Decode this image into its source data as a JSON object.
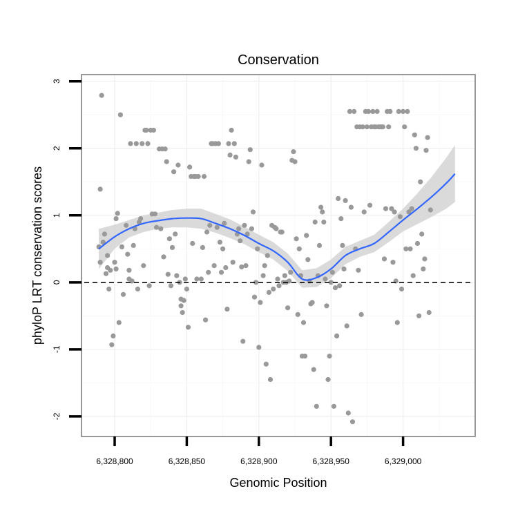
{
  "chart_data": {
    "type": "scatter",
    "title": "Conservation",
    "xlabel": "Genomic Position",
    "ylabel": "phyloP LRT conservation scores",
    "xlim": [
      6328777,
      6329050
    ],
    "ylim": [
      -2.3,
      3.1
    ],
    "x_ticks": [
      6328800,
      6328850,
      6328900,
      6328950,
      6329000
    ],
    "x_tick_labels": [
      "6,328,800",
      "6,328,850",
      "6,328,900",
      "6,328,950",
      "6,329,000"
    ],
    "y_ticks": [
      -2,
      -1,
      0,
      1,
      2,
      3
    ],
    "y_tick_labels": [
      "-2",
      "-1",
      "0",
      "1",
      "2",
      "3"
    ],
    "reference_line": {
      "y": 0,
      "style": "dashed",
      "color": "#000000"
    },
    "grid": true,
    "legend": "none",
    "colors": {
      "points": "#999999",
      "smooth_line": "#3366ff",
      "confidence_band": "#d3d3d3",
      "panel_border": "#7f7f7f"
    },
    "points": [
      [
        6328789,
        0.53
      ],
      [
        6328790,
        1.39
      ],
      [
        6328790,
        0.3
      ],
      [
        6328791,
        2.79
      ],
      [
        6328792,
        0.6
      ],
      [
        6328793,
        0.72
      ],
      [
        6328794,
        0.13
      ],
      [
        6328795,
        0.4
      ],
      [
        6328795,
        0.22
      ],
      [
        6328796,
        -0.1
      ],
      [
        6328797,
        0.18
      ],
      [
        6328798,
        -0.93
      ],
      [
        6328799,
        -0.8
      ],
      [
        6328800,
        0.3
      ],
      [
        6328801,
        0.95
      ],
      [
        6328801,
        0.2
      ],
      [
        6328802,
        1.03
      ],
      [
        6328803,
        -0.6
      ],
      [
        6328804,
        2.5
      ],
      [
        6328805,
        0.53
      ],
      [
        6328806,
        -0.18
      ],
      [
        6328808,
        0.85
      ],
      [
        6328809,
        0.42
      ],
      [
        6328810,
        0.18
      ],
      [
        6328810,
        0.05
      ],
      [
        6328811,
        2.07
      ],
      [
        6328812,
        0.02
      ],
      [
        6328813,
        0.55
      ],
      [
        6328814,
        0.8
      ],
      [
        6328815,
        2.07
      ],
      [
        6328816,
        -0.1
      ],
      [
        6328817,
        0.9
      ],
      [
        6328818,
        0.95
      ],
      [
        6328819,
        2.07
      ],
      [
        6328820,
        0.25
      ],
      [
        6328821,
        2.27
      ],
      [
        6328822,
        2.27
      ],
      [
        6328823,
        2.07
      ],
      [
        6328824,
        -0.05
      ],
      [
        6328825,
        2.27
      ],
      [
        6328826,
        1.02
      ],
      [
        6328827,
        2.27
      ],
      [
        6328828,
        1.02
      ],
      [
        6328829,
        0.82
      ],
      [
        6328831,
        1.99
      ],
      [
        6328832,
        0.8
      ],
      [
        6328833,
        1.99
      ],
      [
        6328834,
        0.38
      ],
      [
        6328835,
        1.99
      ],
      [
        6328836,
        1.8
      ],
      [
        6328837,
        0.12
      ],
      [
        6328838,
        0.65
      ],
      [
        6328839,
        -0.05
      ],
      [
        6328840,
        0.52
      ],
      [
        6328841,
        1.65
      ],
      [
        6328842,
        0.72
      ],
      [
        6328843,
        0.1
      ],
      [
        6328844,
        1.75
      ],
      [
        6328845,
        0.0
      ],
      [
        6328846,
        -0.25
      ],
      [
        6328846,
        -0.35
      ],
      [
        6328847,
        -0.45
      ],
      [
        6328848,
        -0.27
      ],
      [
        6328849,
        0.05
      ],
      [
        6328850,
        -0.1
      ],
      [
        6328851,
        -0.67
      ],
      [
        6328852,
        1.72
      ],
      [
        6328853,
        1.58
      ],
      [
        6328854,
        0.58
      ],
      [
        6328855,
        1.58
      ],
      [
        6328856,
        1.58
      ],
      [
        6328857,
        0.05
      ],
      [
        6328858,
        1.58
      ],
      [
        6328860,
        0.05
      ],
      [
        6328861,
        0.52
      ],
      [
        6328862,
        1.58
      ],
      [
        6328863,
        -0.56
      ],
      [
        6328864,
        0.75
      ],
      [
        6328865,
        0.15
      ],
      [
        6328866,
        0.85
      ],
      [
        6328867,
        2.07
      ],
      [
        6328868,
        2.07
      ],
      [
        6328869,
        0.25
      ],
      [
        6328870,
        2.07
      ],
      [
        6328871,
        0.82
      ],
      [
        6328872,
        2.07
      ],
      [
        6328873,
        0.6
      ],
      [
        6328874,
        0.15
      ],
      [
        6328875,
        0.5
      ],
      [
        6328876,
        0.88
      ],
      [
        6328877,
        0.22
      ],
      [
        6328878,
        -0.4
      ],
      [
        6328879,
        2.07
      ],
      [
        6328880,
        1.9
      ],
      [
        6328881,
        2.27
      ],
      [
        6328882,
        0.3
      ],
      [
        6328883,
        2.07
      ],
      [
        6328884,
        1.87
      ],
      [
        6328885,
        0.72
      ],
      [
        6328886,
        0.8
      ],
      [
        6328887,
        0.62
      ],
      [
        6328888,
        0.23
      ],
      [
        6328889,
        -0.88
      ],
      [
        6328890,
        0.85
      ],
      [
        6328891,
        0.25
      ],
      [
        6328892,
        0.72
      ],
      [
        6328893,
        1.8
      ],
      [
        6328894,
        1.98
      ],
      [
        6328895,
        0.8
      ],
      [
        6328896,
        1.05
      ],
      [
        6328897,
        -0.22
      ],
      [
        6328898,
        0.0
      ],
      [
        6328899,
        0.5
      ],
      [
        6328900,
        -0.97
      ],
      [
        6328901,
        -0.3
      ],
      [
        6328902,
        1.75
      ],
      [
        6328903,
        0.1
      ],
      [
        6328904,
        0.25
      ],
      [
        6328905,
        -1.22
      ],
      [
        6328906,
        0.4
      ],
      [
        6328907,
        -0.15
      ],
      [
        6328908,
        -1.45
      ],
      [
        6328909,
        0.85
      ],
      [
        6328910,
        -0.1
      ],
      [
        6328911,
        0.82
      ],
      [
        6328912,
        0.8
      ],
      [
        6328913,
        0.05
      ],
      [
        6328914,
        -0.05
      ],
      [
        6328915,
        0.75
      ],
      [
        6328916,
        0.75
      ],
      [
        6328917,
        0.0
      ],
      [
        6328918,
        0.1
      ],
      [
        6328919,
        0.0
      ],
      [
        6328920,
        -0.38
      ],
      [
        6328921,
        0.02
      ],
      [
        6328922,
        0.15
      ],
      [
        6328923,
        1.82
      ],
      [
        6328924,
        1.95
      ],
      [
        6328925,
        1.8
      ],
      [
        6328926,
        0.65
      ],
      [
        6328927,
        -0.48
      ],
      [
        6328928,
        0.5
      ],
      [
        6328929,
        0.1
      ],
      [
        6328930,
        -1.1
      ],
      [
        6328931,
        -0.6
      ],
      [
        6328932,
        -1.1
      ],
      [
        6328933,
        0.7
      ],
      [
        6328934,
        0.34
      ],
      [
        6328935,
        0.02
      ],
      [
        6328936,
        -0.32
      ],
      [
        6328937,
        -0.3
      ],
      [
        6328938,
        -1.3
      ],
      [
        6328939,
        0.9
      ],
      [
        6328940,
        -1.85
      ],
      [
        6328941,
        0.1
      ],
      [
        6328942,
        0.55
      ],
      [
        6328943,
        1.12
      ],
      [
        6328944,
        1.05
      ],
      [
        6328945,
        0.9
      ],
      [
        6328946,
        0.05
      ],
      [
        6328947,
        -0.35
      ],
      [
        6328948,
        -1.45
      ],
      [
        6328949,
        -1.1
      ],
      [
        6328950,
        0.0
      ],
      [
        6328951,
        0.15
      ],
      [
        6328952,
        -1.85
      ],
      [
        6328953,
        -0.08
      ],
      [
        6328954,
        -0.8
      ],
      [
        6328955,
        1.25
      ],
      [
        6328956,
        -0.05
      ],
      [
        6328957,
        0.95
      ],
      [
        6328958,
        0.55
      ],
      [
        6328959,
        0.2
      ],
      [
        6328960,
        1.22
      ],
      [
        6328961,
        -0.65
      ],
      [
        6328962,
        -1.95
      ],
      [
        6328963,
        2.55
      ],
      [
        6328964,
        1.12
      ],
      [
        6328965,
        -2.08
      ],
      [
        6328966,
        2.55
      ],
      [
        6328967,
        0.5
      ],
      [
        6328968,
        2.32
      ],
      [
        6328969,
        0.18
      ],
      [
        6328970,
        2.32
      ],
      [
        6328971,
        -0.48
      ],
      [
        6328972,
        2.32
      ],
      [
        6328973,
        1.05
      ],
      [
        6328974,
        2.55
      ],
      [
        6328975,
        2.32
      ],
      [
        6328976,
        2.55
      ],
      [
        6328977,
        1.15
      ],
      [
        6328978,
        2.32
      ],
      [
        6328979,
        2.55
      ],
      [
        6328980,
        2.32
      ],
      [
        6328981,
        2.32
      ],
      [
        6328982,
        2.55
      ],
      [
        6328983,
        2.32
      ],
      [
        6328984,
        2.32
      ],
      [
        6328985,
        2.32
      ],
      [
        6328986,
        2.32
      ],
      [
        6328987,
        0.35
      ],
      [
        6328988,
        1.1
      ],
      [
        6328989,
        2.55
      ],
      [
        6328990,
        2.32
      ],
      [
        6328991,
        2.55
      ],
      [
        6328992,
        1.1
      ],
      [
        6328993,
        0.3
      ],
      [
        6328994,
        1.05
      ],
      [
        6328995,
        0.02
      ],
      [
        6328996,
        -0.6
      ],
      [
        6328997,
        2.55
      ],
      [
        6328998,
        0.98
      ],
      [
        6328999,
        -0.1
      ],
      [
        6329000,
        2.55
      ],
      [
        6329001,
        2.32
      ],
      [
        6329002,
        0.5
      ],
      [
        6329003,
        2.55
      ],
      [
        6329004,
        1.05
      ],
      [
        6329005,
        0.5
      ],
      [
        6329006,
        1.1
      ],
      [
        6329007,
        0.1
      ],
      [
        6329008,
        2.2
      ],
      [
        6329009,
        2.0
      ],
      [
        6329010,
        0.58
      ],
      [
        6329011,
        -0.5
      ],
      [
        6329012,
        1.5
      ],
      [
        6329013,
        0.72
      ],
      [
        6329014,
        0.2
      ],
      [
        6329015,
        0.35
      ],
      [
        6329016,
        1.97
      ],
      [
        6329017,
        2.16
      ],
      [
        6329018,
        -0.45
      ],
      [
        6329019,
        1.08
      ]
    ],
    "smooth_x": [
      6328789,
      6328800,
      6328810,
      6328820,
      6328830,
      6328840,
      6328850,
      6328860,
      6328870,
      6328880,
      6328890,
      6328900,
      6328910,
      6328920,
      6328930,
      6328940,
      6328950,
      6328960,
      6328970,
      6328980,
      6328990,
      6329000,
      6329010,
      6329020,
      6329030,
      6329036
    ],
    "smooth_y": [
      0.5,
      0.68,
      0.8,
      0.88,
      0.92,
      0.95,
      0.96,
      0.95,
      0.88,
      0.8,
      0.7,
      0.58,
      0.47,
      0.3,
      0.05,
      0.07,
      0.2,
      0.4,
      0.5,
      0.58,
      0.75,
      0.93,
      1.1,
      1.28,
      1.48,
      1.62
    ],
    "band_lower": [
      0.2,
      0.5,
      0.67,
      0.75,
      0.8,
      0.82,
      0.82,
      0.8,
      0.74,
      0.66,
      0.57,
      0.45,
      0.34,
      0.17,
      -0.08,
      -0.07,
      0.06,
      0.27,
      0.38,
      0.45,
      0.6,
      0.76,
      0.87,
      0.98,
      1.1,
      1.2
    ],
    "band_upper": [
      0.8,
      0.86,
      0.93,
      1.0,
      1.04,
      1.08,
      1.1,
      1.1,
      1.02,
      0.94,
      0.83,
      0.71,
      0.6,
      0.43,
      0.18,
      0.21,
      0.34,
      0.53,
      0.62,
      0.71,
      0.9,
      1.1,
      1.33,
      1.58,
      1.86,
      2.05
    ]
  }
}
